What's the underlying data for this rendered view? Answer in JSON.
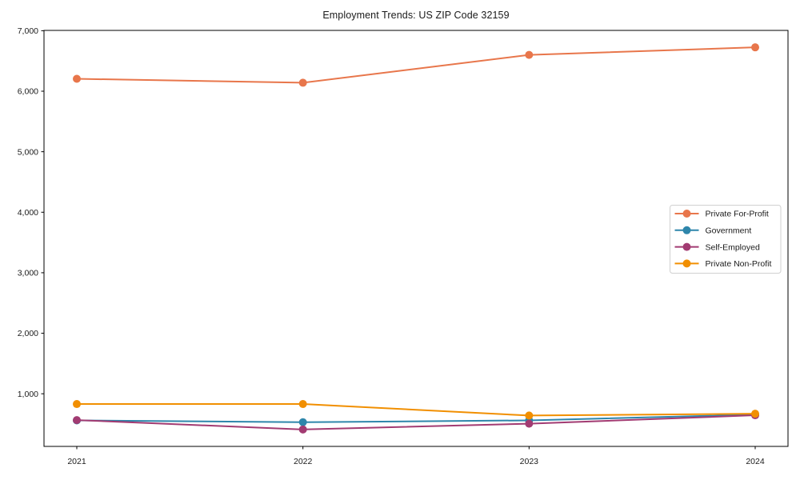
{
  "figure": {
    "background": "#ffffff",
    "text_color": "#1a1a1a",
    "axis_color": "#000000",
    "legend_border_color": "#d0d0d0"
  },
  "chart_data": {
    "type": "line",
    "title": "Employment Trends: US ZIP Code 32159",
    "xlabel": "",
    "ylabel": "",
    "x": [
      2021,
      2022,
      2023,
      2024
    ],
    "x_tick_labels": [
      "2021",
      "2022",
      "2023",
      "2024"
    ],
    "y_ticks": [
      1000,
      2000,
      3000,
      4000,
      5000,
      6000,
      7000
    ],
    "y_tick_labels": [
      "1,000",
      "2,000",
      "3,000",
      "4,000",
      "5,000",
      "6,000",
      "7,000"
    ],
    "ylim": [
      130,
      7005
    ],
    "grid": false,
    "marker": "circle",
    "legend_position": "center-right",
    "series": [
      {
        "name": "Private For-Profit",
        "color": "#e8764b",
        "values": [
          6205,
          6140,
          6600,
          6725
        ]
      },
      {
        "name": "Government",
        "color": "#2e86ab",
        "values": [
          560,
          530,
          560,
          655
        ]
      },
      {
        "name": "Self-Employed",
        "color": "#a23b72",
        "values": [
          565,
          410,
          505,
          645
        ]
      },
      {
        "name": "Private Non-Profit",
        "color": "#f18f01",
        "values": [
          830,
          830,
          640,
          670
        ]
      }
    ]
  }
}
